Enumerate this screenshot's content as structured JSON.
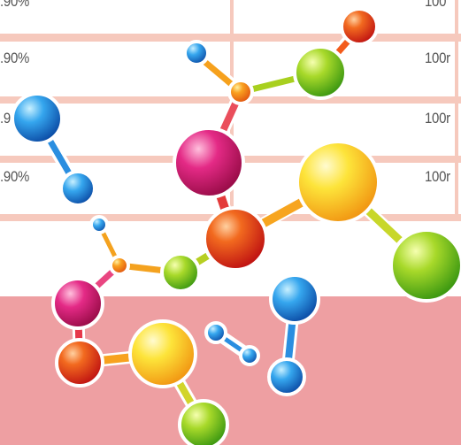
{
  "table": {
    "rows": [
      {
        "left": ".90%",
        "right": "100"
      },
      {
        "left": ".90%",
        "right": "100r"
      },
      {
        "left": ".9",
        "right": "100r"
      },
      {
        "left": ".90%",
        "right": "100r"
      }
    ]
  },
  "colors": {
    "row_line": "#f6c9bd",
    "band": "#ee9fa2",
    "red": "#e2261b",
    "orange": "#f3841c",
    "yellow": "#fbd129",
    "green": "#7fc31c",
    "blue": "#1d7fd6",
    "magenta": "#d4196e"
  },
  "icons": [
    "molecule-illustration"
  ]
}
